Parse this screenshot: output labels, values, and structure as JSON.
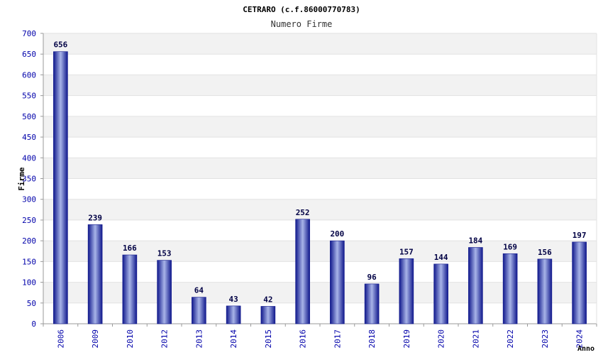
{
  "chart_data": {
    "type": "bar",
    "title": "CETRARO (c.f.86000770783)",
    "subtitle": "Numero Firme",
    "ylabel": "Firme",
    "xlabel": "Anno",
    "categories": [
      "2006",
      "2009",
      "2010",
      "2012",
      "2013",
      "2014",
      "2015",
      "2016",
      "2017",
      "2018",
      "2019",
      "2020",
      "2021",
      "2022",
      "2023",
      "2024"
    ],
    "values": [
      656,
      239,
      166,
      153,
      64,
      43,
      42,
      252,
      200,
      96,
      157,
      144,
      184,
      169,
      156,
      197
    ],
    "ylim": [
      0,
      700
    ],
    "yticks": [
      "0",
      "50",
      "100",
      "150",
      "200",
      "250",
      "300",
      "350",
      "400",
      "450",
      "500",
      "550",
      "600",
      "650",
      "700"
    ],
    "grid": true,
    "legend": "none"
  },
  "colors": {
    "bar_dark": "#10188c",
    "bar_light": "#a8b4e8",
    "band": "#f2f2f2",
    "tick_text": "#0000aa",
    "value_text": "#000044",
    "axis": "#9a9a9a"
  }
}
